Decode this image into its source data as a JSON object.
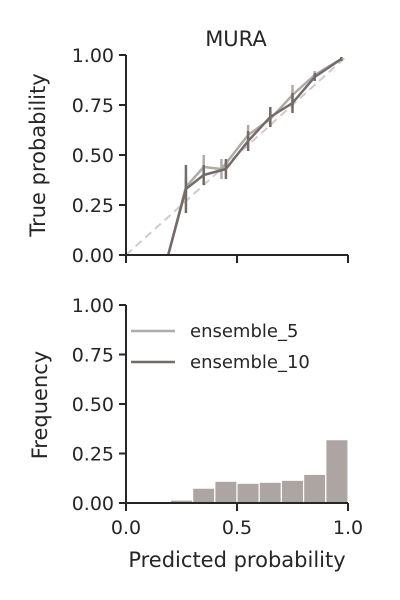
{
  "colors": {
    "ensemble_5": "#b1aba5",
    "ensemble_10": "#736b69",
    "diagonal": "#cccccc",
    "hist_bar": "#aca5a2",
    "axis": "#262626"
  },
  "chart_data": [
    {
      "type": "line",
      "title": "MURA",
      "xlabel": "",
      "ylabel": "True probability",
      "xlim": [
        0,
        1
      ],
      "ylim": [
        0,
        1
      ],
      "x_ticks": [
        0,
        0.5,
        1
      ],
      "y_ticks": [
        "0.00",
        "0.25",
        "0.50",
        "0.75",
        "1.00"
      ],
      "x_tick_labels_visible": false,
      "diagonal": true,
      "grid": false,
      "series": [
        {
          "name": "ensemble_5",
          "x": [
            0.19,
            0.27,
            0.35,
            0.43,
            0.55,
            0.65,
            0.75,
            0.85,
            0.97
          ],
          "y": [
            0.0,
            0.34,
            0.44,
            0.43,
            0.6,
            0.68,
            0.8,
            0.9,
            0.98
          ],
          "err": [
            0,
            0.05,
            0.06,
            0.05,
            0.05,
            0.04,
            0.05,
            0.02,
            0.01
          ]
        },
        {
          "name": "ensemble_10",
          "x": [
            0.19,
            0.27,
            0.35,
            0.45,
            0.55,
            0.65,
            0.75,
            0.85,
            0.97
          ],
          "y": [
            0.0,
            0.33,
            0.4,
            0.43,
            0.57,
            0.69,
            0.76,
            0.89,
            0.98
          ],
          "err": [
            0,
            0.12,
            0.05,
            0.05,
            0.05,
            0.05,
            0.05,
            0.02,
            0.01
          ]
        }
      ]
    },
    {
      "type": "bar",
      "title": "",
      "xlabel": "Predicted probability",
      "ylabel": "Frequency",
      "xlim": [
        0,
        1
      ],
      "ylim": [
        0,
        1
      ],
      "x_ticks": [
        "0.0",
        "0.5",
        "1.0"
      ],
      "y_ticks": [
        "0.00",
        "0.25",
        "0.50",
        "0.75",
        "1.00"
      ],
      "legend": {
        "placement": "upper-left",
        "entries": [
          "ensemble_5",
          "ensemble_10"
        ]
      },
      "bins": [
        {
          "x0": 0.2,
          "x1": 0.3,
          "value": 0.015
        },
        {
          "x0": 0.3,
          "x1": 0.4,
          "value": 0.075
        },
        {
          "x0": 0.4,
          "x1": 0.5,
          "value": 0.11
        },
        {
          "x0": 0.5,
          "x1": 0.6,
          "value": 0.1
        },
        {
          "x0": 0.6,
          "x1": 0.7,
          "value": 0.105
        },
        {
          "x0": 0.7,
          "x1": 0.8,
          "value": 0.115
        },
        {
          "x0": 0.8,
          "x1": 0.9,
          "value": 0.145
        },
        {
          "x0": 0.9,
          "x1": 1.0,
          "value": 0.32
        }
      ]
    }
  ]
}
